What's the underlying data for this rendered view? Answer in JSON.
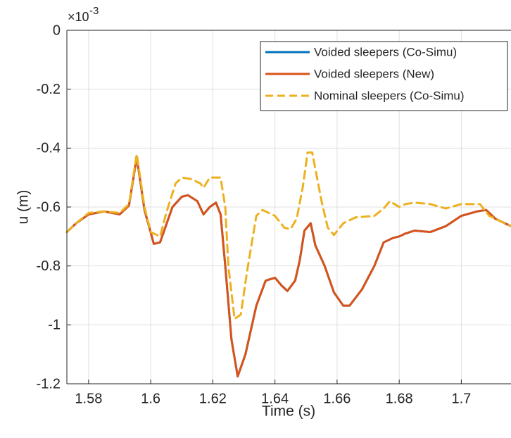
{
  "chart_data": {
    "type": "line",
    "title": "",
    "xlabel": "Time (s)",
    "ylabel": "u (m)",
    "y_exponent_label": "×10",
    "y_exponent_power": "-3",
    "xlim": [
      1.573,
      1.716
    ],
    "ylim": [
      -1.2,
      0
    ],
    "xticks": [
      1.58,
      1.6,
      1.62,
      1.64,
      1.66,
      1.68,
      1.7
    ],
    "xtick_labels": [
      "1.58",
      "1.6",
      "1.62",
      "1.64",
      "1.66",
      "1.68",
      "1.7"
    ],
    "yticks": [
      0,
      -0.2,
      -0.4,
      -0.6,
      -0.8,
      -1,
      -1.2
    ],
    "ytick_labels": [
      "0",
      "-0.2",
      "-0.4",
      "-0.6",
      "-0.8",
      "-1",
      "-1.2"
    ],
    "grid": true,
    "legend_position": "top-right",
    "series": [
      {
        "name": "Voided sleepers (Co-Simu)",
        "color": "#0072BD",
        "dash": "solid",
        "points": [
          [
            1.573,
            -0.685
          ],
          [
            1.576,
            -0.655
          ],
          [
            1.58,
            -0.625
          ],
          [
            1.585,
            -0.615
          ],
          [
            1.59,
            -0.625
          ],
          [
            1.593,
            -0.595
          ],
          [
            1.5955,
            -0.43
          ],
          [
            1.598,
            -0.61
          ],
          [
            1.601,
            -0.725
          ],
          [
            1.603,
            -0.72
          ],
          [
            1.607,
            -0.6
          ],
          [
            1.61,
            -0.565
          ],
          [
            1.612,
            -0.56
          ],
          [
            1.615,
            -0.58
          ],
          [
            1.617,
            -0.625
          ],
          [
            1.619,
            -0.6
          ],
          [
            1.621,
            -0.585
          ],
          [
            1.6225,
            -0.625
          ],
          [
            1.624,
            -0.8
          ],
          [
            1.626,
            -1.05
          ],
          [
            1.628,
            -1.175
          ],
          [
            1.6305,
            -1.1
          ],
          [
            1.634,
            -0.935
          ],
          [
            1.637,
            -0.85
          ],
          [
            1.64,
            -0.84
          ],
          [
            1.642,
            -0.865
          ],
          [
            1.644,
            -0.885
          ],
          [
            1.6465,
            -0.85
          ],
          [
            1.648,
            -0.78
          ],
          [
            1.6495,
            -0.68
          ],
          [
            1.6515,
            -0.655
          ],
          [
            1.653,
            -0.73
          ],
          [
            1.656,
            -0.8
          ],
          [
            1.659,
            -0.89
          ],
          [
            1.662,
            -0.935
          ],
          [
            1.664,
            -0.935
          ],
          [
            1.668,
            -0.88
          ],
          [
            1.672,
            -0.8
          ],
          [
            1.675,
            -0.72
          ],
          [
            1.678,
            -0.705
          ],
          [
            1.68,
            -0.7
          ],
          [
            1.682,
            -0.69
          ],
          [
            1.685,
            -0.68
          ],
          [
            1.69,
            -0.685
          ],
          [
            1.695,
            -0.665
          ],
          [
            1.7,
            -0.63
          ],
          [
            1.705,
            -0.615
          ],
          [
            1.708,
            -0.61
          ],
          [
            1.711,
            -0.64
          ],
          [
            1.716,
            -0.665
          ]
        ]
      },
      {
        "name": "Voided sleepers (New)",
        "color": "#D95319",
        "dash": "solid",
        "points": [
          [
            1.573,
            -0.685
          ],
          [
            1.576,
            -0.655
          ],
          [
            1.58,
            -0.625
          ],
          [
            1.585,
            -0.615
          ],
          [
            1.59,
            -0.625
          ],
          [
            1.593,
            -0.595
          ],
          [
            1.5955,
            -0.43
          ],
          [
            1.598,
            -0.61
          ],
          [
            1.601,
            -0.725
          ],
          [
            1.603,
            -0.72
          ],
          [
            1.607,
            -0.6
          ],
          [
            1.61,
            -0.565
          ],
          [
            1.612,
            -0.56
          ],
          [
            1.615,
            -0.58
          ],
          [
            1.617,
            -0.625
          ],
          [
            1.619,
            -0.6
          ],
          [
            1.621,
            -0.585
          ],
          [
            1.6225,
            -0.625
          ],
          [
            1.624,
            -0.8
          ],
          [
            1.626,
            -1.05
          ],
          [
            1.628,
            -1.175
          ],
          [
            1.6305,
            -1.1
          ],
          [
            1.634,
            -0.935
          ],
          [
            1.637,
            -0.85
          ],
          [
            1.64,
            -0.84
          ],
          [
            1.642,
            -0.865
          ],
          [
            1.644,
            -0.885
          ],
          [
            1.6465,
            -0.85
          ],
          [
            1.648,
            -0.78
          ],
          [
            1.6495,
            -0.68
          ],
          [
            1.6515,
            -0.655
          ],
          [
            1.653,
            -0.73
          ],
          [
            1.656,
            -0.8
          ],
          [
            1.659,
            -0.89
          ],
          [
            1.662,
            -0.935
          ],
          [
            1.664,
            -0.935
          ],
          [
            1.668,
            -0.88
          ],
          [
            1.672,
            -0.8
          ],
          [
            1.675,
            -0.72
          ],
          [
            1.678,
            -0.705
          ],
          [
            1.68,
            -0.7
          ],
          [
            1.682,
            -0.69
          ],
          [
            1.685,
            -0.68
          ],
          [
            1.69,
            -0.685
          ],
          [
            1.695,
            -0.665
          ],
          [
            1.7,
            -0.63
          ],
          [
            1.705,
            -0.615
          ],
          [
            1.708,
            -0.61
          ],
          [
            1.711,
            -0.64
          ],
          [
            1.716,
            -0.665
          ]
        ]
      },
      {
        "name": "Nominal sleepers (Co-Simu)",
        "color": "#EDB120",
        "dash": "dashed",
        "points": [
          [
            1.573,
            -0.685
          ],
          [
            1.576,
            -0.655
          ],
          [
            1.58,
            -0.62
          ],
          [
            1.585,
            -0.615
          ],
          [
            1.59,
            -0.62
          ],
          [
            1.593,
            -0.59
          ],
          [
            1.5955,
            -0.42
          ],
          [
            1.598,
            -0.6
          ],
          [
            1.6,
            -0.685
          ],
          [
            1.603,
            -0.7
          ],
          [
            1.605,
            -0.62
          ],
          [
            1.608,
            -0.52
          ],
          [
            1.61,
            -0.5
          ],
          [
            1.613,
            -0.505
          ],
          [
            1.616,
            -0.52
          ],
          [
            1.617,
            -0.535
          ],
          [
            1.619,
            -0.5
          ],
          [
            1.6225,
            -0.5
          ],
          [
            1.624,
            -0.6
          ],
          [
            1.625,
            -0.8
          ],
          [
            1.627,
            -0.98
          ],
          [
            1.629,
            -0.965
          ],
          [
            1.631,
            -0.82
          ],
          [
            1.634,
            -0.63
          ],
          [
            1.636,
            -0.61
          ],
          [
            1.64,
            -0.63
          ],
          [
            1.643,
            -0.67
          ],
          [
            1.645,
            -0.675
          ],
          [
            1.647,
            -0.64
          ],
          [
            1.649,
            -0.53
          ],
          [
            1.6505,
            -0.415
          ],
          [
            1.652,
            -0.415
          ],
          [
            1.655,
            -0.58
          ],
          [
            1.657,
            -0.67
          ],
          [
            1.659,
            -0.695
          ],
          [
            1.662,
            -0.655
          ],
          [
            1.666,
            -0.635
          ],
          [
            1.672,
            -0.63
          ],
          [
            1.675,
            -0.605
          ],
          [
            1.677,
            -0.58
          ],
          [
            1.68,
            -0.6
          ],
          [
            1.682,
            -0.59
          ],
          [
            1.685,
            -0.585
          ],
          [
            1.69,
            -0.59
          ],
          [
            1.695,
            -0.605
          ],
          [
            1.7,
            -0.59
          ],
          [
            1.706,
            -0.59
          ],
          [
            1.709,
            -0.63
          ],
          [
            1.716,
            -0.665
          ]
        ]
      }
    ]
  }
}
